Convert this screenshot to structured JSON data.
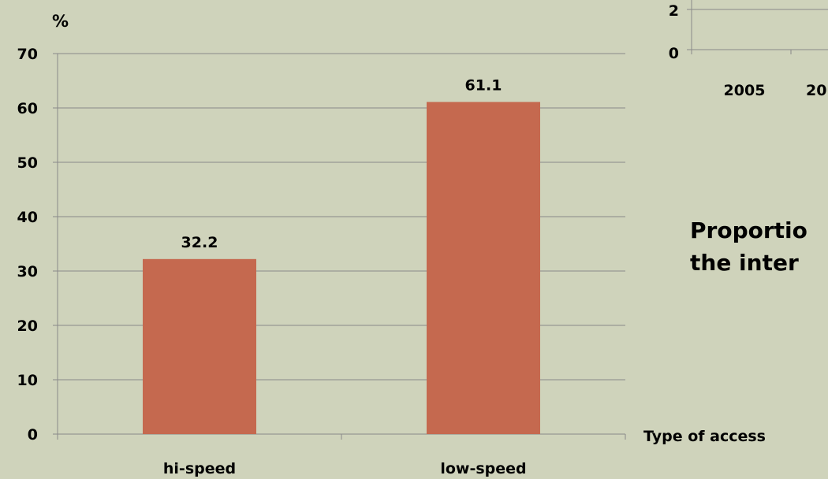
{
  "chart_data": [
    {
      "type": "bar",
      "ylabel": "%",
      "xlabel": "Type of access",
      "categories": [
        "hi-speed",
        "low-speed"
      ],
      "values": [
        32.2,
        61.1
      ],
      "data_labels": [
        "32.2",
        "61.1"
      ],
      "yticks": [
        "0",
        "10",
        "20",
        "30",
        "40",
        "50",
        "60",
        "70"
      ],
      "ylim": [
        0,
        70
      ],
      "grid": true,
      "bar_color": "#c5694f"
    },
    {
      "type": "line",
      "partially_visible": true,
      "yticks": [
        "0",
        "2"
      ],
      "xticks": [
        "2005",
        "20"
      ]
    }
  ],
  "overlay_text": {
    "title_line1": "Proportio",
    "title_line2": "the inter"
  }
}
